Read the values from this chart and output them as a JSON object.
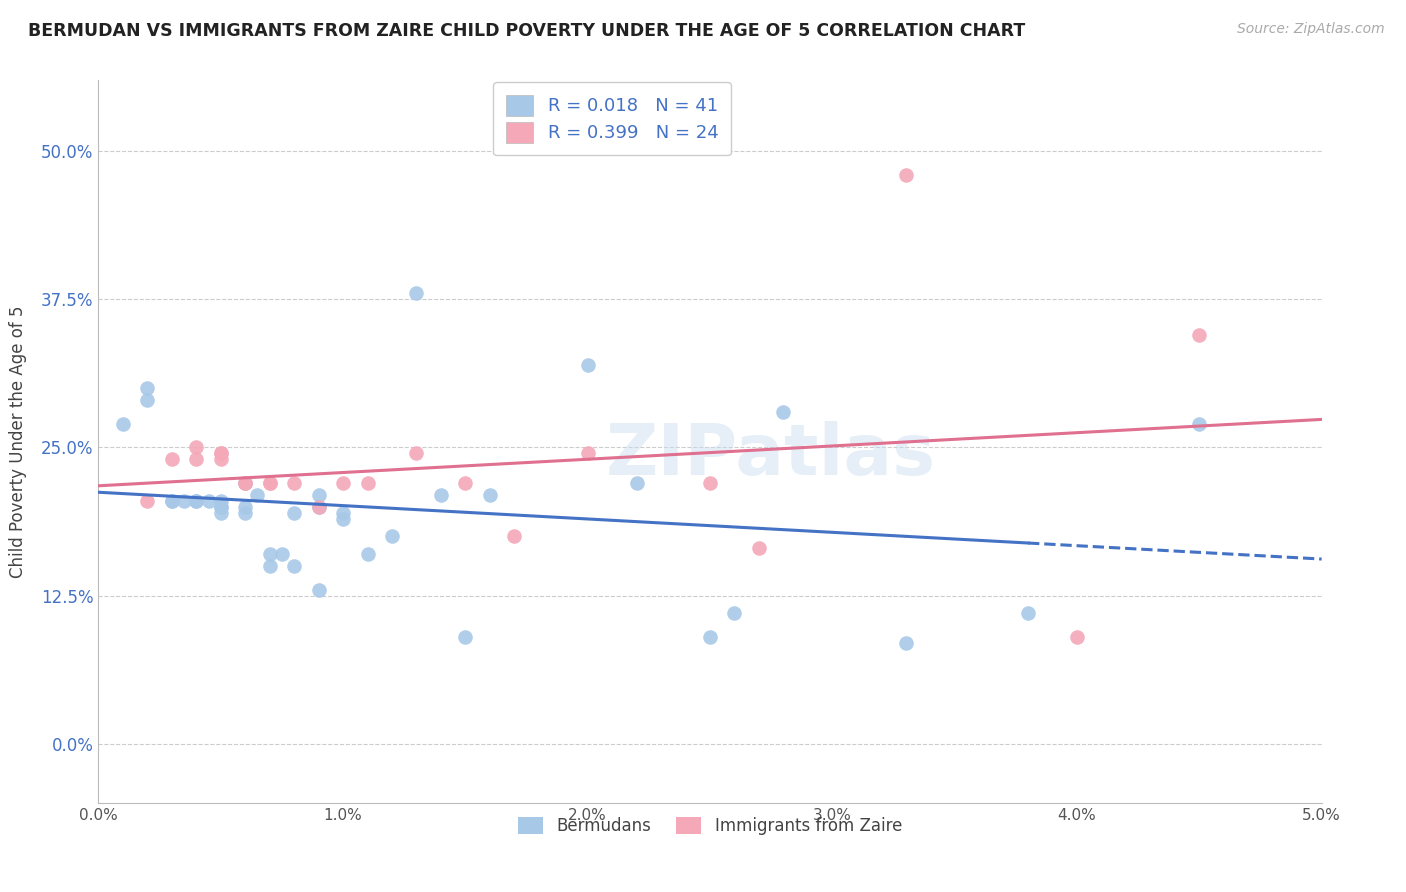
{
  "title": "BERMUDAN VS IMMIGRANTS FROM ZAIRE CHILD POVERTY UNDER THE AGE OF 5 CORRELATION CHART",
  "source": "Source: ZipAtlas.com",
  "ylabel": "Child Poverty Under the Age of 5",
  "xlim": [
    0.0,
    0.05
  ],
  "ylim": [
    -0.05,
    0.56
  ],
  "yticks": [
    0.0,
    0.125,
    0.25,
    0.375,
    0.5
  ],
  "ytick_labels": [
    "0.0%",
    "12.5%",
    "25.0%",
    "37.5%",
    "50.0%"
  ],
  "xticks": [
    0.0,
    0.01,
    0.02,
    0.03,
    0.04,
    0.05
  ],
  "xtick_labels": [
    "0.0%",
    "1.0%",
    "2.0%",
    "3.0%",
    "4.0%",
    "5.0%"
  ],
  "legend_label1": "Bermudans",
  "legend_label2": "Immigrants from Zaire",
  "blue_color": "#a8c8e8",
  "pink_color": "#f4a8b8",
  "blue_line_color": "#4472c4",
  "pink_line_color": "#e07090",
  "watermark": "ZIPatlas",
  "blue_line_solid_end": 0.038,
  "bermudans_x": [
    0.001,
    0.002,
    0.002,
    0.003,
    0.003,
    0.0035,
    0.004,
    0.004,
    0.0045,
    0.005,
    0.005,
    0.005,
    0.005,
    0.006,
    0.006,
    0.006,
    0.0065,
    0.007,
    0.007,
    0.0075,
    0.008,
    0.008,
    0.009,
    0.009,
    0.009,
    0.01,
    0.01,
    0.011,
    0.012,
    0.013,
    0.014,
    0.015,
    0.016,
    0.02,
    0.022,
    0.025,
    0.026,
    0.028,
    0.033,
    0.038,
    0.045
  ],
  "bermudans_y": [
    0.27,
    0.3,
    0.29,
    0.205,
    0.205,
    0.205,
    0.205,
    0.205,
    0.205,
    0.205,
    0.2,
    0.2,
    0.195,
    0.195,
    0.22,
    0.2,
    0.21,
    0.15,
    0.16,
    0.16,
    0.195,
    0.15,
    0.2,
    0.21,
    0.13,
    0.195,
    0.19,
    0.16,
    0.175,
    0.38,
    0.21,
    0.09,
    0.21,
    0.32,
    0.22,
    0.09,
    0.11,
    0.28,
    0.085,
    0.11,
    0.27
  ],
  "zaire_x": [
    0.002,
    0.003,
    0.004,
    0.004,
    0.005,
    0.005,
    0.005,
    0.006,
    0.006,
    0.007,
    0.007,
    0.008,
    0.009,
    0.01,
    0.011,
    0.013,
    0.015,
    0.017,
    0.02,
    0.025,
    0.027,
    0.033,
    0.04,
    0.045
  ],
  "zaire_y": [
    0.205,
    0.24,
    0.25,
    0.24,
    0.24,
    0.245,
    0.245,
    0.22,
    0.22,
    0.22,
    0.22,
    0.22,
    0.2,
    0.22,
    0.22,
    0.245,
    0.22,
    0.175,
    0.245,
    0.22,
    0.165,
    0.48,
    0.09,
    0.345
  ]
}
